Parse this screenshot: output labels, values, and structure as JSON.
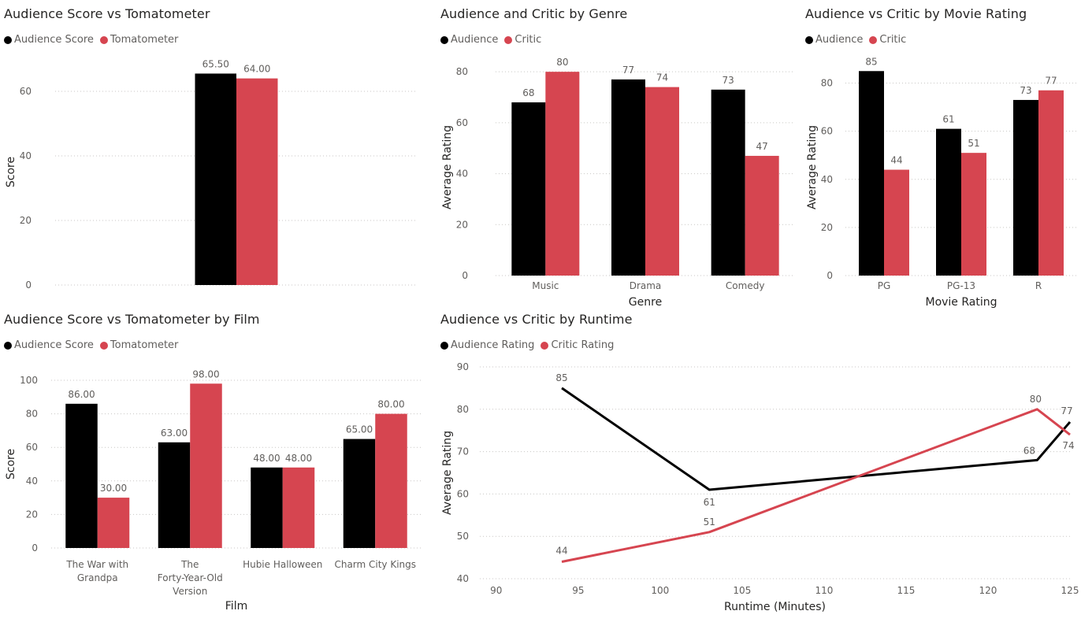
{
  "colors": {
    "black_series": "#000000",
    "red_series": "#d64550",
    "grid": "#c8c6c4",
    "text": "#605e5c"
  },
  "chart_data": [
    {
      "id": "c1",
      "type": "bar",
      "title": "Audience Score vs Tomatometer",
      "legend": [
        "Audience Score",
        "Tomatometer"
      ],
      "legend_position": "top-left",
      "categories": [
        ""
      ],
      "series": [
        {
          "name": "Audience Score",
          "values": [
            65.5
          ],
          "labels": [
            "65.50"
          ]
        },
        {
          "name": "Tomatometer",
          "values": [
            64
          ],
          "labels": [
            "64.00"
          ]
        }
      ],
      "xlabel": "",
      "ylabel": "Score",
      "ylim": [
        0,
        70
      ],
      "yticks": [
        0,
        20,
        40,
        60
      ],
      "grid": true
    },
    {
      "id": "c2",
      "type": "bar",
      "title": "Audience and Critic by Genre",
      "legend": [
        "Audience",
        "Critic"
      ],
      "legend_position": "top-left",
      "categories": [
        "Music",
        "Drama",
        "Comedy"
      ],
      "series": [
        {
          "name": "Audience",
          "values": [
            68,
            77,
            73
          ],
          "labels": [
            "68",
            "77",
            "73"
          ]
        },
        {
          "name": "Critic",
          "values": [
            80,
            74,
            47
          ],
          "labels": [
            "80",
            "74",
            "47"
          ]
        }
      ],
      "xlabel": "Genre",
      "ylabel": "Average Rating",
      "ylim": [
        0,
        85
      ],
      "yticks": [
        0,
        20,
        40,
        60,
        80
      ],
      "grid": true
    },
    {
      "id": "c3",
      "type": "bar",
      "title": "Audience vs Critic by Movie Rating",
      "legend": [
        "Audience",
        "Critic"
      ],
      "legend_position": "top-left",
      "categories": [
        "PG",
        "PG-13",
        "R"
      ],
      "series": [
        {
          "name": "Audience",
          "values": [
            85,
            61,
            73
          ],
          "labels": [
            "85",
            "61",
            "73"
          ]
        },
        {
          "name": "Critic",
          "values": [
            44,
            51,
            77
          ],
          "labels": [
            "44",
            "51",
            "77"
          ]
        }
      ],
      "xlabel": "Movie Rating",
      "ylabel": "Average Rating",
      "ylim": [
        0,
        90
      ],
      "yticks": [
        0,
        20,
        40,
        60,
        80
      ],
      "grid": true
    },
    {
      "id": "c4",
      "type": "bar",
      "title": "Audience Score vs Tomatometer by Film",
      "legend": [
        "Audience Score",
        "Tomatometer"
      ],
      "legend_position": "top-left",
      "categories": [
        [
          "The War with",
          "Grandpa"
        ],
        [
          "The",
          "Forty-Year-Old",
          "Version"
        ],
        [
          "Hubie Halloween"
        ],
        [
          "Charm City Kings"
        ]
      ],
      "series": [
        {
          "name": "Audience Score",
          "values": [
            86,
            63,
            48,
            65
          ],
          "labels": [
            "86.00",
            "63.00",
            "48.00",
            "65.00"
          ]
        },
        {
          "name": "Tomatometer",
          "values": [
            30,
            98,
            48,
            80
          ],
          "labels": [
            "30.00",
            "98.00",
            "48.00",
            "80.00"
          ]
        }
      ],
      "xlabel": "Film",
      "ylabel": "Score",
      "ylim": [
        0,
        100
      ],
      "yticks": [
        0,
        20,
        40,
        60,
        80,
        100
      ],
      "grid": true
    },
    {
      "id": "c5",
      "type": "line",
      "title": "Audience vs Critic by Runtime",
      "legend": [
        "Audience Rating",
        "Critic Rating"
      ],
      "legend_position": "top-left",
      "series": [
        {
          "name": "Audience Rating",
          "x": [
            94,
            103,
            123,
            125
          ],
          "y": [
            85,
            61,
            68,
            77
          ],
          "labels": [
            "85",
            "61",
            "68",
            "77"
          ]
        },
        {
          "name": "Critic Rating",
          "x": [
            94,
            103,
            123,
            125
          ],
          "y": [
            44,
            51,
            80,
            74
          ],
          "labels": [
            "44",
            "51",
            "80",
            "74"
          ]
        }
      ],
      "xlabel": "Runtime (Minutes)",
      "ylabel": "Average Rating",
      "xlim": [
        89,
        125
      ],
      "ylim": [
        40,
        90
      ],
      "xticks": [
        90,
        95,
        100,
        105,
        110,
        115,
        120,
        125
      ],
      "yticks": [
        40,
        50,
        60,
        70,
        80,
        90
      ],
      "grid": true
    }
  ]
}
